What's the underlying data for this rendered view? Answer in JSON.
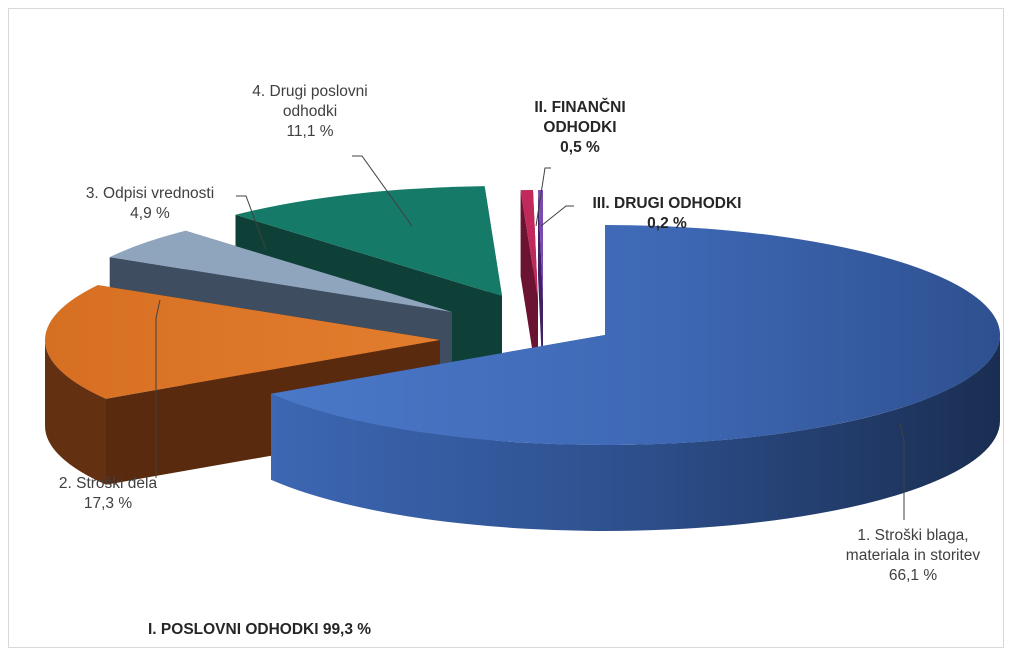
{
  "chart_data": {
    "type": "pie",
    "style": "3D exploded pie",
    "slices": [
      {
        "name": "1. Stroški blaga, materiala in storitev",
        "value": 66.1,
        "display": "66,1 %",
        "color": "#4472C4"
      },
      {
        "name": "2. Stroški dela",
        "value": 17.3,
        "display": "17,3 %",
        "color": "#DE7428"
      },
      {
        "name": "3. Odpisi vrednosti",
        "value": 4.9,
        "display": "4,9 %",
        "color": "#8FA5BD"
      },
      {
        "name": "4. Drugi poslovni odhodki",
        "value": 11.1,
        "display": "11,1 %",
        "color": "#167A68"
      },
      {
        "name": "II. FINANČNI ODHODKI",
        "value": 0.5,
        "display": "0,5 %",
        "color": "#C0295A"
      },
      {
        "name": "III. DRUGI ODHODKI",
        "value": 0.2,
        "display": "0,2 %",
        "color": "#6C3FA0"
      }
    ],
    "group_label": "I. POSLOVNI ODHODKI 99,3 %"
  },
  "labels": {
    "s1_line1": "1. Stroški blaga,",
    "s1_line2": "materiala in storitev",
    "s1_value": "66,1 %",
    "s2_line1": "2. Stroški dela",
    "s2_value": "17,3 %",
    "s3_line1": "3. Odpisi vrednosti",
    "s3_value": "4,9 %",
    "s4_line1": "4. Drugi poslovni",
    "s4_line2": "odhodki",
    "s4_value": "11,1 %",
    "s5_line1": "II. FINANČNI",
    "s5_line2": "ODHODKI",
    "s5_value": "0,5 %",
    "s6_line1": "III. DRUGI ODHODKI",
    "s6_value": "0,2 %",
    "group": "I. POSLOVNI ODHODKI 99,3 %"
  }
}
